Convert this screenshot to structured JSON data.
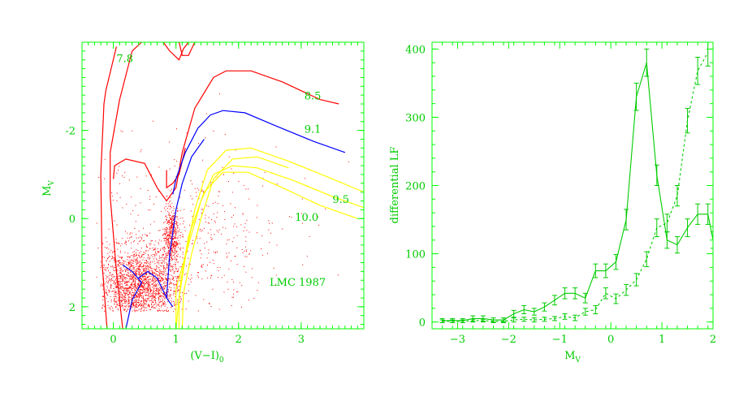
{
  "chart_data": [
    {
      "type": "scatter",
      "title": "",
      "xlabel": "(V−I)",
      "xlabel_sub": "0",
      "ylabel": "M",
      "ylabel_sub": "V",
      "xlim": [
        -0.5,
        4.0
      ],
      "ylim": [
        2.5,
        -4.0
      ],
      "y_inverted": true,
      "xticks": [
        0,
        1,
        2,
        3
      ],
      "yticks": [
        -2,
        0,
        2
      ],
      "annotation": "LMC 1987",
      "colors": {
        "axes": "#00ff00",
        "labels": "#00cc00",
        "stars": "#ff0000",
        "isochrone_red": "#ff0000",
        "isochrone_blue": "#0000ff",
        "isochrone_yellow": "#ffff00"
      },
      "isochrones": [
        {
          "label": "7.8",
          "color": "#ff0000",
          "label_at": [
            0.05,
            -3.55
          ],
          "points": [
            [
              -0.1,
              2.5
            ],
            [
              -0.18,
              1.0
            ],
            [
              -0.2,
              -1.0
            ],
            [
              -0.15,
              -2.6
            ],
            [
              -0.12,
              -2.9
            ],
            [
              0.05,
              -3.9
            ]
          ]
        },
        {
          "label": "7.8",
          "color": "#ff0000",
          "points": [
            [
              0.15,
              2.5
            ],
            [
              0.05,
              1.2
            ],
            [
              -0.05,
              -0.5
            ],
            [
              -0.05,
              -1.5
            ],
            [
              0.1,
              -2.7
            ],
            [
              0.3,
              -3.8
            ],
            [
              0.45,
              -4.0
            ]
          ]
        },
        {
          "label": "",
          "color": "#ff0000",
          "points": [
            [
              0.8,
              -4.0
            ],
            [
              0.9,
              -3.8
            ],
            [
              1.05,
              -3.6
            ],
            [
              1.12,
              -3.85
            ],
            [
              1.2,
              -4.0
            ]
          ]
        },
        {
          "label": "",
          "color": "#ff0000",
          "points": [
            [
              1.05,
              -4.0
            ],
            [
              1.1,
              -3.7
            ],
            [
              1.2,
              -3.7
            ],
            [
              1.3,
              -4.0
            ]
          ]
        },
        {
          "label": "8.5",
          "color": "#ff0000",
          "label_at": [
            3.05,
            -2.7
          ],
          "points": [
            [
              0.0,
              -0.9
            ],
            [
              0.02,
              -1.2
            ],
            [
              0.2,
              -1.35
            ],
            [
              0.5,
              -1.25
            ],
            [
              0.7,
              -0.7
            ],
            [
              0.85,
              -0.4
            ],
            [
              1.0,
              -0.7
            ],
            [
              1.1,
              -1.5
            ],
            [
              1.3,
              -2.5
            ],
            [
              1.6,
              -3.2
            ],
            [
              1.8,
              -3.35
            ],
            [
              2.2,
              -3.35
            ],
            [
              2.7,
              -3.1
            ],
            [
              3.3,
              -2.7
            ],
            [
              3.6,
              -2.6
            ]
          ]
        },
        {
          "label": "",
          "color": "#ff0000",
          "points": [
            [
              0.85,
              -1.1
            ],
            [
              0.85,
              -0.7
            ],
            [
              0.95,
              -0.8
            ],
            [
              1.05,
              -1.0
            ],
            [
              1.15,
              -1.6
            ]
          ]
        },
        {
          "label": "9.1",
          "color": "#0000ff",
          "label_at": [
            3.05,
            -1.95
          ],
          "points": [
            [
              0.95,
              -0.55
            ],
            [
              1.0,
              -0.9
            ],
            [
              1.15,
              -1.5
            ],
            [
              1.35,
              -2.05
            ],
            [
              1.55,
              -2.35
            ],
            [
              1.75,
              -2.45
            ],
            [
              2.1,
              -2.4
            ],
            [
              2.6,
              -2.1
            ],
            [
              3.2,
              -1.75
            ],
            [
              3.7,
              -1.5
            ]
          ]
        },
        {
          "label": "",
          "color": "#0000ff",
          "points": [
            [
              0.85,
              1.8
            ],
            [
              0.9,
              0.8
            ],
            [
              1.0,
              -0.2
            ],
            [
              1.1,
              -0.8
            ],
            [
              1.25,
              -1.4
            ],
            [
              1.45,
              -1.8
            ]
          ]
        },
        {
          "label": "",
          "color": "#0000ff",
          "points": [
            [
              0.15,
              1.05
            ],
            [
              0.3,
              1.2
            ],
            [
              0.45,
              1.45
            ],
            [
              0.3,
              1.85
            ],
            [
              0.2,
              2.5
            ]
          ]
        },
        {
          "label": "",
          "color": "#0000ff",
          "points": [
            [
              0.4,
              1.35
            ],
            [
              0.55,
              1.2
            ],
            [
              0.7,
              1.35
            ],
            [
              0.85,
              1.8
            ],
            [
              0.95,
              2.0
            ]
          ]
        },
        {
          "label": "9.5",
          "color": "#ffff00",
          "label_at": [
            3.5,
            -0.35
          ],
          "points": [
            [
              1.0,
              2.5
            ],
            [
              1.0,
              1.6
            ],
            [
              1.2,
              0.6
            ],
            [
              1.4,
              -0.4
            ],
            [
              1.6,
              -1.0
            ],
            [
              1.9,
              -1.2
            ],
            [
              2.3,
              -1.15
            ],
            [
              2.9,
              -0.85
            ],
            [
              3.5,
              -0.5
            ],
            [
              4.0,
              -0.25
            ]
          ]
        },
        {
          "label": "",
          "color": "#ffff00",
          "points": [
            [
              1.05,
              2.5
            ],
            [
              1.05,
              1.8
            ],
            [
              1.15,
              0.9
            ],
            [
              1.3,
              -0.2
            ],
            [
              1.5,
              -1.1
            ],
            [
              1.8,
              -1.55
            ],
            [
              2.2,
              -1.6
            ],
            [
              2.8,
              -1.3
            ],
            [
              3.5,
              -0.9
            ],
            [
              4.0,
              -0.6
            ]
          ]
        },
        {
          "label": "10.0",
          "color": "#ffff00",
          "label_at": [
            2.9,
            0.05
          ],
          "points": [
            [
              1.0,
              2.5
            ],
            [
              1.08,
              1.4
            ],
            [
              1.2,
              0.4
            ],
            [
              1.45,
              -0.6
            ],
            [
              1.75,
              -1.05
            ],
            [
              2.15,
              -1.05
            ],
            [
              2.7,
              -0.7
            ],
            [
              3.3,
              -0.3
            ],
            [
              3.9,
              0.0
            ]
          ]
        },
        {
          "label": "",
          "color": "#ffff00",
          "points": [
            [
              1.1,
              2.5
            ],
            [
              1.12,
              1.7
            ],
            [
              1.25,
              0.8
            ],
            [
              1.4,
              0.0
            ],
            [
              1.6,
              -0.9
            ],
            [
              1.9,
              -1.35
            ],
            [
              2.3,
              -1.4
            ],
            [
              2.8,
              -1.15
            ]
          ]
        }
      ],
      "star_clusters": [
        {
          "name": "main-sequence",
          "x_mean": 0.4,
          "x_sd": 0.35,
          "y_mean": 1.5,
          "y_sd": 0.45,
          "n": 1800,
          "x_min": -0.2,
          "x_max": 1.1,
          "y_min": 0.2,
          "y_max": 2.1
        },
        {
          "name": "red-clump",
          "x_mean": 0.92,
          "x_sd": 0.06,
          "y_mean": 0.4,
          "y_sd": 0.35,
          "n": 450,
          "x_min": 0.7,
          "x_max": 1.2,
          "y_min": -1.5,
          "y_max": 1.3
        },
        {
          "name": "field",
          "x_mean": 1.2,
          "x_sd": 0.8,
          "y_mean": 0.6,
          "y_sd": 1.1,
          "n": 500,
          "x_min": -0.3,
          "x_max": 3.8,
          "y_min": -3.7,
          "y_max": 2.1
        }
      ]
    },
    {
      "type": "line",
      "title": "",
      "xlabel": "M",
      "xlabel_sub": "V",
      "ylabel": "differential LF",
      "xlim": [
        -3.5,
        2.0
      ],
      "ylim": [
        -10,
        410
      ],
      "xticks": [
        -3,
        -2,
        -1,
        0,
        1,
        2
      ],
      "yticks": [
        0,
        100,
        200,
        300,
        400
      ],
      "colors": {
        "axes": "#00ff00",
        "line": "#00cc00"
      },
      "series": [
        {
          "style": "solid",
          "x": [
            -3.3,
            -3.1,
            -2.9,
            -2.7,
            -2.5,
            -2.3,
            -2.1,
            -1.9,
            -1.7,
            -1.5,
            -1.3,
            -1.1,
            -0.9,
            -0.7,
            -0.5,
            -0.3,
            -0.1,
            0.1,
            0.3,
            0.5,
            0.7,
            0.9,
            1.1,
            1.3,
            1.5,
            1.7,
            1.9,
            2.0
          ],
          "y": [
            2,
            2,
            2,
            5,
            5,
            3,
            3,
            12,
            18,
            15,
            22,
            32,
            42,
            42,
            35,
            75,
            75,
            88,
            150,
            330,
            380,
            215,
            120,
            113,
            138,
            158,
            158,
            120
          ],
          "err": [
            3,
            3,
            3,
            4,
            4,
            3,
            3,
            5,
            6,
            5,
            6,
            7,
            8,
            8,
            7,
            10,
            10,
            11,
            15,
            20,
            20,
            15,
            12,
            12,
            13,
            15,
            15,
            12
          ]
        },
        {
          "style": "dashed",
          "x": [
            -3.3,
            -3.1,
            -2.9,
            -2.7,
            -2.5,
            -2.3,
            -2.1,
            -1.9,
            -1.7,
            -1.5,
            -1.3,
            -1.1,
            -0.9,
            -0.7,
            -0.5,
            -0.3,
            -0.1,
            0.1,
            0.3,
            0.5,
            0.7,
            0.9,
            1.1,
            1.3,
            1.5,
            1.7,
            1.9
          ],
          "y": [
            1,
            1,
            1,
            2,
            2,
            1,
            1,
            3,
            4,
            3,
            4,
            5,
            8,
            6,
            15,
            18,
            42,
            34,
            47,
            62,
            92,
            138,
            145,
            185,
            295,
            368,
            395
          ],
          "err": [
            2,
            2,
            2,
            2,
            2,
            2,
            2,
            3,
            3,
            3,
            3,
            3,
            4,
            4,
            5,
            6,
            8,
            7,
            8,
            9,
            11,
            13,
            13,
            15,
            18,
            20,
            20
          ]
        }
      ]
    }
  ]
}
